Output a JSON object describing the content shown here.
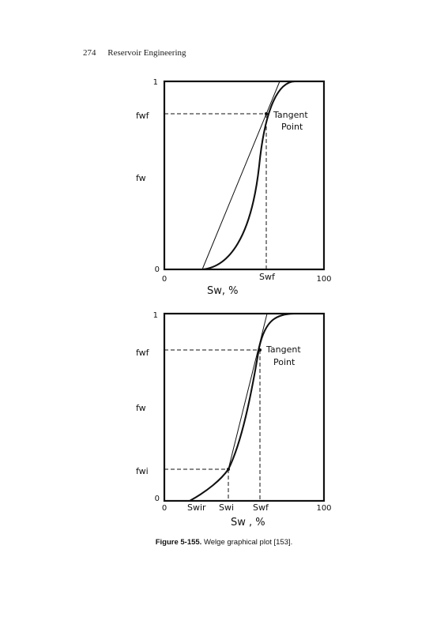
{
  "header": {
    "page_number": "274",
    "running_title": "Reservoir Engineering"
  },
  "figures": [
    {
      "tick_top": "1",
      "tick_bottom": "0",
      "x_tick_left": "0",
      "x_tick_right": "100",
      "fwf": "fwf",
      "fw": "fw",
      "swf": "Swf",
      "xlabel": "Sw, %",
      "tangent_label_1": "Tangent",
      "tangent_label_2": "Point"
    },
    {
      "tick_top": "1",
      "tick_bottom": "0",
      "x_tick_left": "0",
      "x_tick_right": "100",
      "fwf": "fwf",
      "fw": "fw",
      "fwi": "fwi",
      "swir": "Swir",
      "swi": "Swi",
      "swf": "Swf",
      "xlabel": "Sw , %",
      "tangent_label_1": "Tangent",
      "tangent_label_2": "Point"
    }
  ],
  "caption": {
    "label": "Figure 5-155.",
    "text": "Welge graphical plot [153]."
  }
}
